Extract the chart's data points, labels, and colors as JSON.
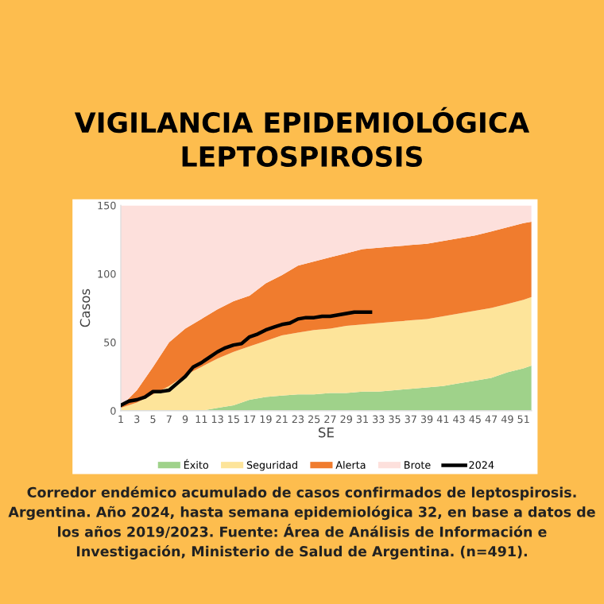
{
  "chart_data": {
    "type": "area",
    "stacked": true,
    "title": "VIGILANCIA EPIDEMIOLÓGICA\nLEPTOSPIROSIS",
    "xlabel": "SE",
    "ylabel": "Casos",
    "x": [
      1,
      3,
      5,
      7,
      9,
      11,
      13,
      15,
      17,
      19,
      21,
      23,
      25,
      27,
      29,
      31,
      33,
      35,
      37,
      39,
      41,
      43,
      45,
      47,
      49,
      51,
      52
    ],
    "series": [
      {
        "name": "Éxito",
        "color": "#9fd28a",
        "values": [
          0,
          0,
          0,
          0,
          0,
          0,
          2,
          4,
          8,
          10,
          11,
          12,
          12,
          13,
          13,
          14,
          14,
          15,
          16,
          17,
          18,
          20,
          22,
          24,
          28,
          31,
          33
        ]
      },
      {
        "name": "Seguridad",
        "color": "#fde49a",
        "values": [
          2,
          6,
          12,
          18,
          26,
          32,
          36,
          39,
          39,
          41,
          44,
          45,
          47,
          47,
          49,
          49,
          50,
          50,
          50,
          50,
          51,
          51,
          51,
          51,
          50,
          50,
          50
        ]
      },
      {
        "name": "Alerta",
        "color": "#f07c2e",
        "values": [
          1,
          9,
          20,
          32,
          34,
          35,
          36,
          37,
          37,
          42,
          44,
          49,
          50,
          52,
          53,
          55,
          55,
          55,
          55,
          55,
          55,
          55,
          55,
          56,
          56,
          56,
          55
        ]
      },
      {
        "name": "Brote",
        "color": "#fde0dc",
        "values": [
          147,
          135,
          118,
          100,
          90,
          83,
          76,
          70,
          66,
          57,
          51,
          44,
          41,
          38,
          35,
          32,
          31,
          30,
          29,
          28,
          26,
          24,
          22,
          19,
          16,
          13,
          12
        ]
      },
      {
        "name": "2024",
        "type": "line",
        "color": "#000000",
        "x": [
          1,
          2,
          3,
          4,
          5,
          6,
          7,
          8,
          9,
          10,
          11,
          12,
          13,
          14,
          15,
          16,
          17,
          18,
          19,
          20,
          21,
          22,
          23,
          24,
          25,
          26,
          27,
          28,
          29,
          30,
          31,
          32
        ],
        "values": [
          4,
          7,
          8,
          10,
          14,
          14,
          15,
          20,
          25,
          32,
          35,
          39,
          43,
          46,
          48,
          49,
          54,
          56,
          59,
          61,
          63,
          64,
          67,
          68,
          68,
          69,
          69,
          70,
          71,
          72,
          72,
          72
        ]
      }
    ],
    "xlim": [
      1,
      52
    ],
    "xticks": [
      1,
      3,
      5,
      7,
      9,
      11,
      13,
      15,
      17,
      19,
      21,
      23,
      25,
      27,
      29,
      31,
      33,
      35,
      37,
      39,
      41,
      43,
      45,
      47,
      49,
      51
    ],
    "ylim": [
      0,
      150
    ],
    "yticks": [
      0,
      50,
      100,
      150
    ],
    "grid": false,
    "legend": "bottom",
    "annotations": [
      "Corredor endémico acumulado de casos confirmados de leptospirosis. Argentina. Año 2024, hasta semana epidemiológica 32, en base a datos de los años 2019/2023. Fuente: Área de Análisis de Información e Investigación, Ministerio de Salud de Argentina. (n=491)."
    ]
  }
}
